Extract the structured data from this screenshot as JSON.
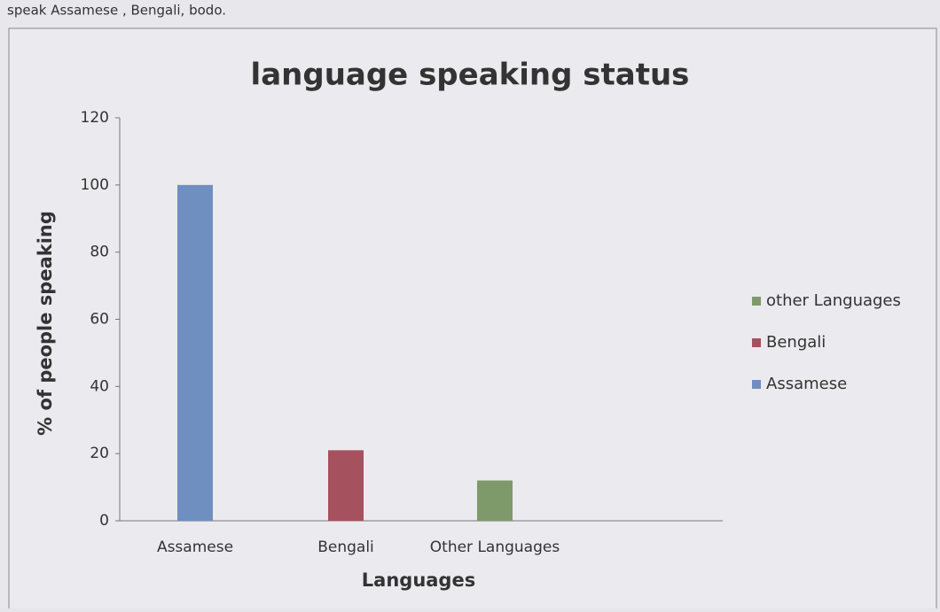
{
  "page_text": "speak Assamese , Bengali, bodo.",
  "chart_data": {
    "type": "bar",
    "title": "language speaking status",
    "x_label": "Languages",
    "y_label": "% of people speaking",
    "categories": [
      "Assamese",
      "Bengali",
      "Other Languages"
    ],
    "series": [
      {
        "name": "Assamese",
        "color": "#6f8fc0",
        "values": [
          100,
          null,
          null
        ]
      },
      {
        "name": "Bengali",
        "color": "#a5525e",
        "values": [
          null,
          21,
          null
        ]
      },
      {
        "name": "other Languages",
        "color": "#7f9a6a",
        "values": [
          null,
          null,
          12
        ]
      }
    ],
    "ylim": [
      0,
      120
    ],
    "yticks": [
      0,
      20,
      40,
      60,
      80,
      100,
      120
    ],
    "legend": "right"
  }
}
